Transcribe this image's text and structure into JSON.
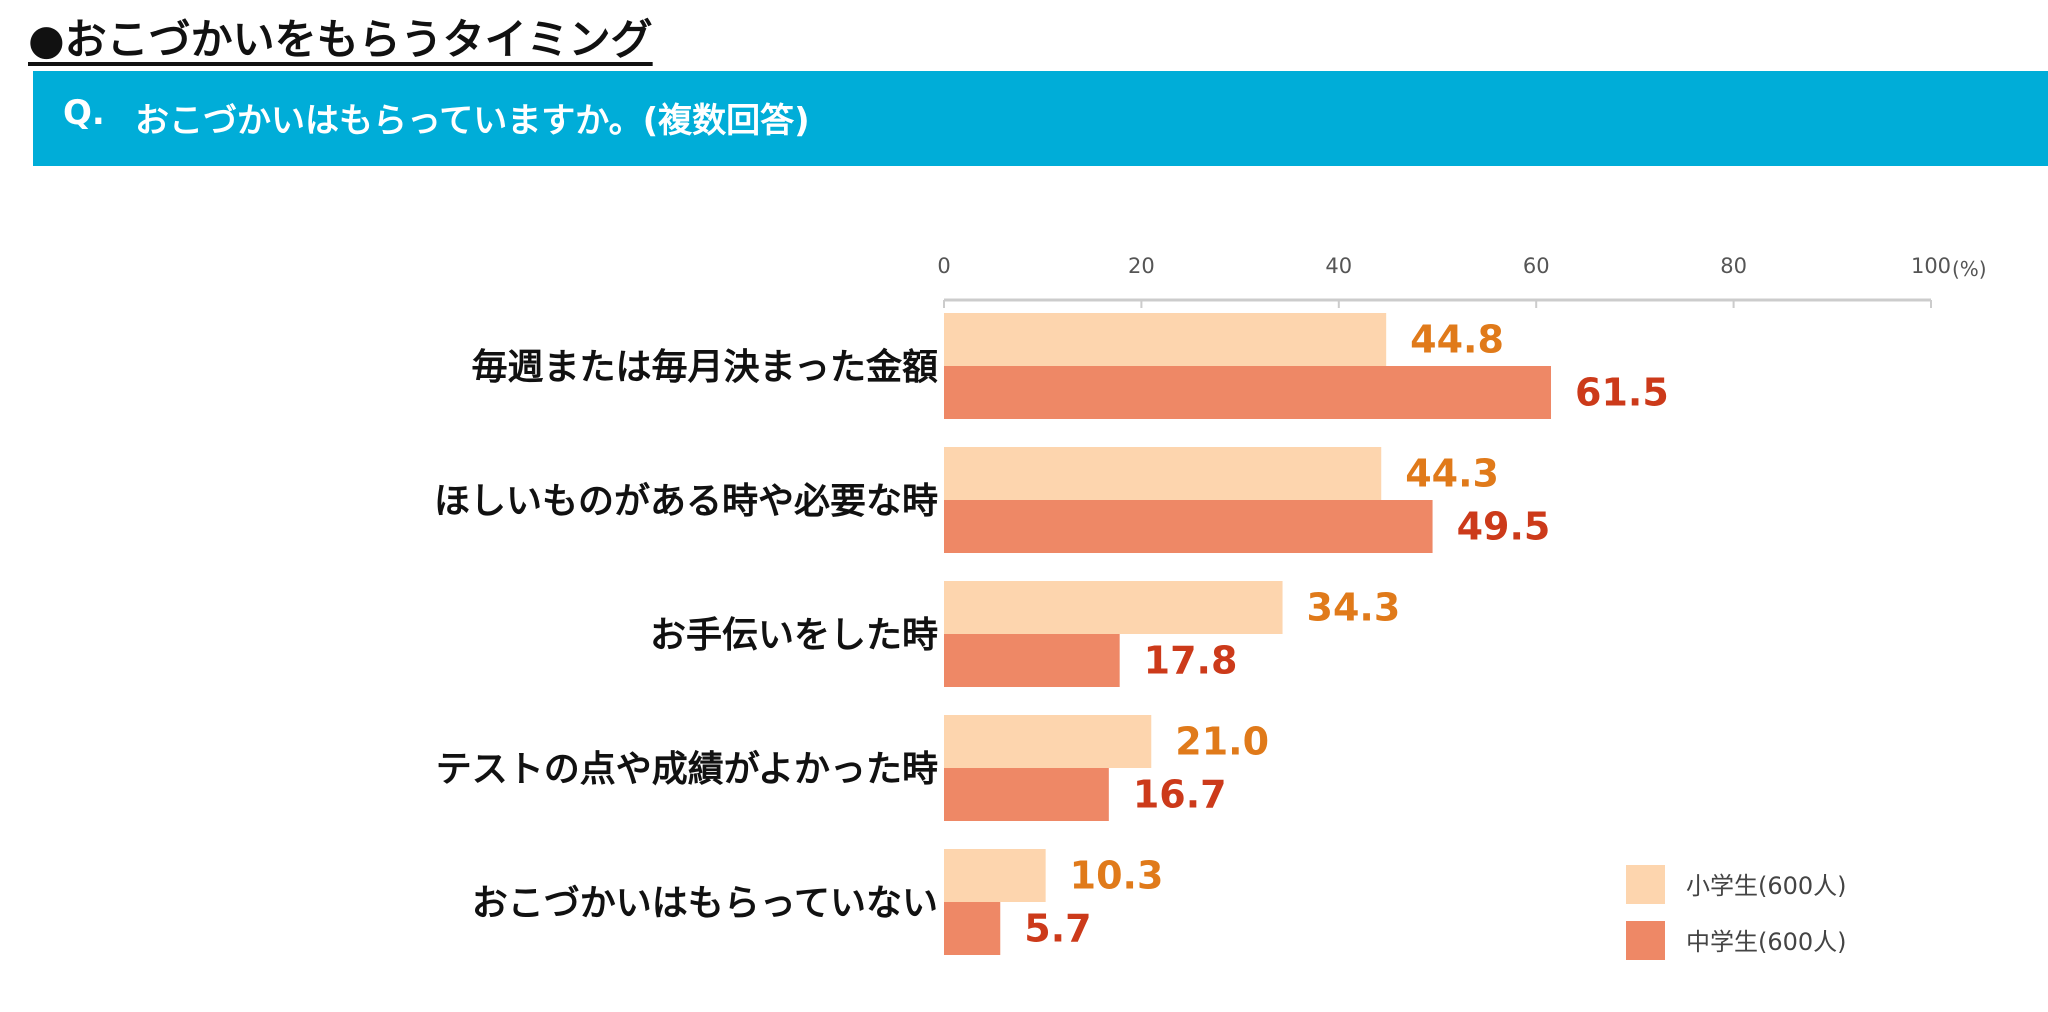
{
  "page": {
    "title": "●おこづかいをもらうタイミング",
    "question_prefix": "Q.",
    "question": "おこづかいはもらっていますか。(複数回答)"
  },
  "colors": {
    "banner": "#00ADD8",
    "elementary_bar": "#FDD5AE",
    "junior_bar": "#EE8866",
    "elementary_label": "#E07A1A",
    "junior_label": "#CC3A1A",
    "axis": "#CCCCCC"
  },
  "chart_data": {
    "type": "bar",
    "orientation": "horizontal",
    "title": "おこづかいはもらっていますか。(複数回答)",
    "xlabel": "",
    "ylabel": "",
    "unit": "(%)",
    "xlim": [
      0,
      100
    ],
    "ticks": [
      "0",
      "20",
      "40",
      "60",
      "80",
      "100"
    ],
    "tick_values": [
      0,
      20,
      40,
      60,
      80,
      100
    ],
    "legend_position": "bottom-right",
    "categories": [
      "毎週または毎月決まった金額",
      "ほしいものがある時や必要な時",
      "お手伝いをした時",
      "テストの点や成績がよかった時",
      "おこづかいはもらっていない"
    ],
    "series": [
      {
        "name": "小学生(600人)",
        "values": [
          44.8,
          44.3,
          34.3,
          21.0,
          10.3
        ],
        "labels": [
          "44.8",
          "44.3",
          "34.3",
          "21.0",
          "10.3"
        ]
      },
      {
        "name": "中学生(600人)",
        "values": [
          61.5,
          49.5,
          17.8,
          16.7,
          5.7
        ],
        "labels": [
          "61.5",
          "49.5",
          "17.8",
          "16.7",
          "5.7"
        ]
      }
    ]
  }
}
